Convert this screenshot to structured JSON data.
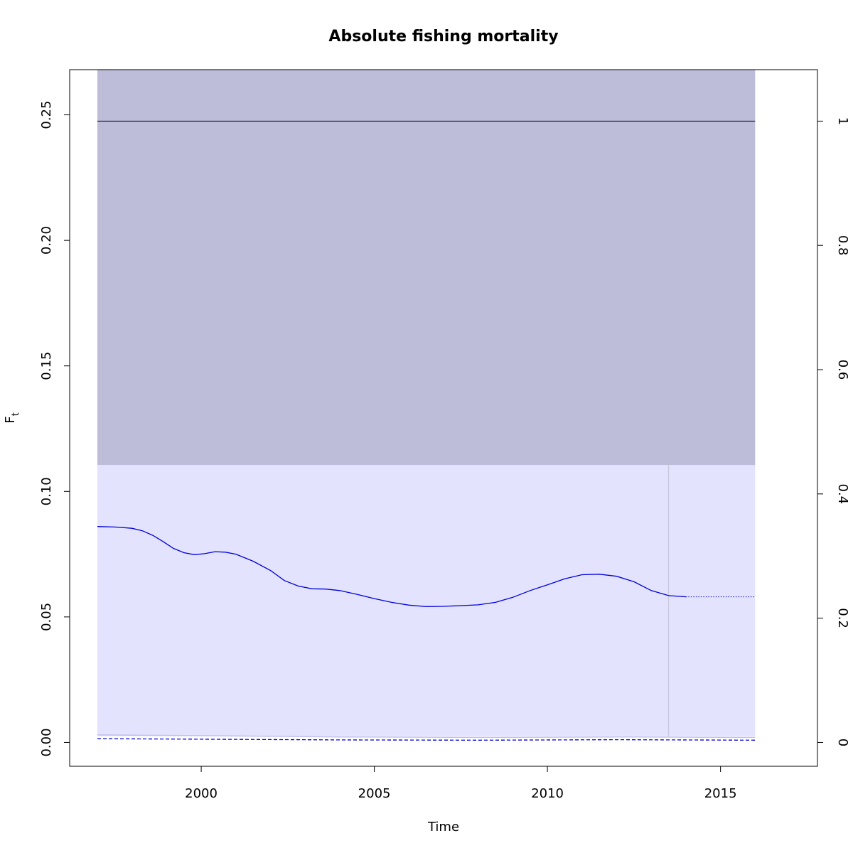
{
  "chart_data": {
    "type": "line",
    "title": "Absolute fishing mortality",
    "xlabel": "Time",
    "ylabel": "F",
    "ylabel_subscript": "t",
    "xlim": [
      1996.2,
      2017.8
    ],
    "ylim": [
      -0.0095,
      0.268
    ],
    "x_ticks": [
      2000,
      2005,
      2010,
      2015
    ],
    "y_ticks": [
      0.0,
      0.05,
      0.1,
      0.15,
      0.2,
      0.25
    ],
    "y_tick_labels": [
      "0.00",
      "0.05",
      "0.10",
      "0.15",
      "0.20",
      "0.25"
    ],
    "y2_ticks": [
      0,
      0.2,
      0.4,
      0.6,
      0.8,
      1
    ],
    "y2_tick_labels": [
      "0",
      "0.2",
      "0.4",
      "0.6",
      "0.8",
      "1"
    ],
    "y2_scale_at_one": 0.2475,
    "grid": false,
    "colors": {
      "line": "#0000dd",
      "upper_band": "#bdbdd9",
      "lower_band": "#e3e3fd",
      "hline": "#000000",
      "vline": "#c8c8dc",
      "ci_line": "#c0c0ee"
    },
    "regions": {
      "x_range": [
        1997.0,
        2016.0
      ],
      "upper_band_y": [
        0.1105,
        0.268
      ],
      "lower_band_y": [
        0.0025,
        0.1105
      ]
    },
    "hline_y": 0.2475,
    "vline_x": 2013.5,
    "series": [
      {
        "style": "solid",
        "x": [
          1997.0,
          1997.5,
          1998.0,
          1998.3,
          1998.6,
          1998.9,
          1999.2,
          1999.5,
          1999.8,
          2000.1,
          2000.4,
          2000.7,
          2001.0,
          2001.5,
          2002.0,
          2002.4,
          2002.8,
          2003.2,
          2003.6,
          2004.0,
          2004.5,
          2005.0,
          2005.5,
          2006.0,
          2006.5,
          2007.0,
          2007.5,
          2008.0,
          2008.5,
          2009.0,
          2009.5,
          2010.0,
          2010.5,
          2011.0,
          2011.5,
          2012.0,
          2012.5,
          2013.0,
          2013.5,
          2014.0
        ],
        "y": [
          0.086,
          0.0858,
          0.0853,
          0.0843,
          0.0825,
          0.08,
          0.0773,
          0.0756,
          0.0748,
          0.0752,
          0.076,
          0.0758,
          0.075,
          0.0722,
          0.0685,
          0.0645,
          0.0623,
          0.0612,
          0.0611,
          0.0605,
          0.059,
          0.0573,
          0.0558,
          0.0547,
          0.0541,
          0.0542,
          0.0545,
          0.0548,
          0.0558,
          0.0578,
          0.0605,
          0.0628,
          0.0652,
          0.0668,
          0.067,
          0.0662,
          0.064,
          0.0605,
          0.0585,
          0.058
        ]
      },
      {
        "style": "dotted",
        "x": [
          2014.0,
          2016.0
        ],
        "y": [
          0.058,
          0.058
        ]
      },
      {
        "style": "dashed",
        "x": [
          1997.0,
          2000.0,
          2004.0,
          2008.0,
          2012.0,
          2016.0
        ],
        "y": [
          0.0015,
          0.0013,
          0.001,
          0.0009,
          0.0011,
          0.0009
        ]
      },
      {
        "style": "ci",
        "x": [
          1997.0,
          2000.0,
          2004.0,
          2008.0,
          2012.0,
          2016.0
        ],
        "y": [
          0.003,
          0.0027,
          0.0022,
          0.002,
          0.0022,
          0.002
        ]
      }
    ]
  }
}
